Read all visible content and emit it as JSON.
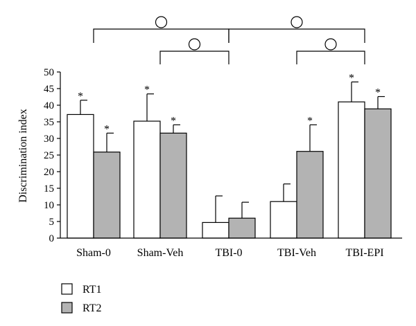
{
  "chart_data": {
    "type": "bar",
    "ylabel": "Discrimination index",
    "xlabel": "",
    "ylim": [
      0,
      50
    ],
    "yticks": [
      0,
      5,
      10,
      15,
      20,
      25,
      30,
      35,
      40,
      45,
      50
    ],
    "categories": [
      "Sham-0",
      "Sham-Veh",
      "TBI-0",
      "TBI-Veh",
      "TBI-EPI"
    ],
    "series": [
      {
        "name": "RT1",
        "color": "#ffffff",
        "values": [
          37.2,
          35.2,
          4.7,
          11.0,
          41.0
        ],
        "errors": [
          4.3,
          8.2,
          8.0,
          5.3,
          6.0
        ],
        "significant": [
          true,
          true,
          false,
          false,
          true
        ]
      },
      {
        "name": "RT2",
        "color": "#b3b3b3",
        "values": [
          25.9,
          31.6,
          6.0,
          26.1,
          38.9
        ],
        "errors": [
          5.7,
          2.5,
          4.8,
          8.0,
          3.7
        ],
        "significant": [
          true,
          true,
          false,
          true,
          true
        ]
      }
    ],
    "significance_marker": "*",
    "comparison_brackets": [
      {
        "from": 0,
        "to": 2
      },
      {
        "from": 2,
        "to": 4
      },
      {
        "from": 1,
        "to": 2
      },
      {
        "from": 3,
        "to": 4
      }
    ],
    "legend_position": "bottom-left",
    "grid": false
  }
}
